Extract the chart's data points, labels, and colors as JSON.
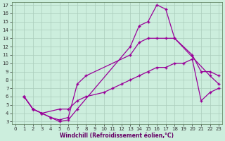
{
  "xlabel": "Windchill (Refroidissement éolien,°C)",
  "background_color": "#cceedd",
  "grid_color": "#aaccbb",
  "line_color": "#990099",
  "xlim_min": 0,
  "xlim_max": 23,
  "ylim_min": 3,
  "ylim_max": 17,
  "xticks": [
    0,
    1,
    2,
    3,
    4,
    5,
    6,
    7,
    8,
    9,
    10,
    11,
    12,
    13,
    14,
    15,
    16,
    17,
    18,
    19,
    20,
    21,
    22,
    23
  ],
  "yticks": [
    3,
    4,
    5,
    6,
    7,
    8,
    9,
    10,
    11,
    12,
    13,
    14,
    15,
    16,
    17
  ],
  "line1_x": [
    1,
    2,
    3,
    4,
    5,
    6,
    7,
    13,
    14,
    15,
    16,
    17,
    18,
    22,
    23
  ],
  "line1_y": [
    6.0,
    4.5,
    4.0,
    3.5,
    3.0,
    3.2,
    4.5,
    12.0,
    14.5,
    15.0,
    17.0,
    16.5,
    13.0,
    8.5,
    7.5
  ],
  "line2_x": [
    1,
    2,
    3,
    4,
    5,
    6,
    7,
    8,
    13,
    14,
    15,
    16,
    17,
    18,
    20,
    21,
    22,
    23
  ],
  "line2_y": [
    6.0,
    4.5,
    4.0,
    3.5,
    3.2,
    3.5,
    7.5,
    8.5,
    11.0,
    12.5,
    13.0,
    13.0,
    13.0,
    13.0,
    11.0,
    9.0,
    9.0,
    8.5
  ],
  "line3_x": [
    1,
    2,
    3,
    5,
    6,
    7,
    8,
    10,
    11,
    12,
    13,
    14,
    15,
    16,
    17,
    18,
    19,
    20,
    21,
    22,
    23
  ],
  "line3_y": [
    6.0,
    4.5,
    4.0,
    4.5,
    4.5,
    5.5,
    6.0,
    6.5,
    7.0,
    7.5,
    8.0,
    8.5,
    9.0,
    9.5,
    9.5,
    10.0,
    10.0,
    10.5,
    5.5,
    6.5,
    7.0
  ]
}
